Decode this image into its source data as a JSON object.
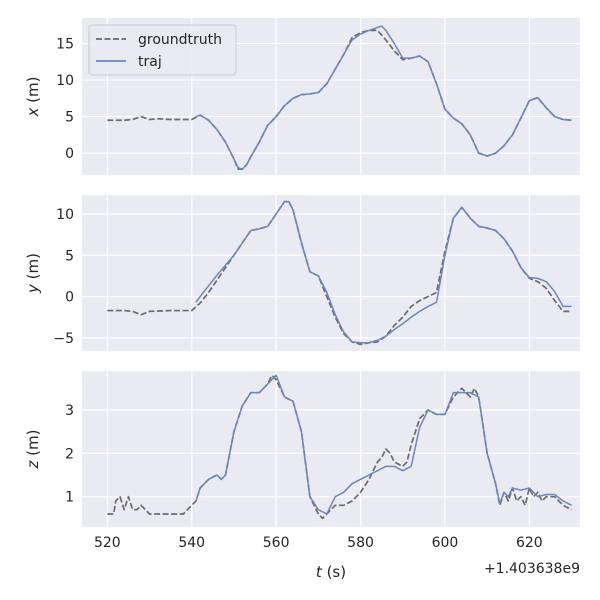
{
  "chart_data": [
    {
      "type": "line",
      "ylabel_var": "x",
      "ylabel_unit": "(m)",
      "xlim": [
        514,
        632
      ],
      "ylim": [
        -3.0,
        18.5
      ],
      "yticks": [
        0,
        5,
        10,
        15
      ],
      "grid": true,
      "legend": "top-left",
      "series": [
        {
          "name": "groundtruth",
          "style": "dashed",
          "color": "#6b6b6b",
          "x": [
            520,
            522,
            524,
            526,
            528,
            530,
            532,
            535,
            538,
            540,
            542,
            544,
            546,
            548,
            550,
            551,
            552,
            553,
            554,
            556,
            558,
            560,
            562,
            564,
            566,
            568,
            570,
            572,
            574,
            576,
            578,
            580,
            582,
            584,
            586,
            588,
            590,
            592,
            594,
            596,
            598,
            600,
            602,
            604,
            606,
            608,
            610,
            612,
            614,
            616,
            618,
            620,
            622,
            624,
            626,
            628,
            630
          ],
          "y": [
            4.5,
            4.5,
            4.5,
            4.6,
            5.0,
            4.6,
            4.7,
            4.6,
            4.6,
            4.6,
            5.2,
            4.5,
            3.2,
            1.5,
            -0.8,
            -2.2,
            -2.2,
            -1.6,
            -0.5,
            1.5,
            3.8,
            5.0,
            6.5,
            7.5,
            8.0,
            8.1,
            8.3,
            9.5,
            11.5,
            13.5,
            15.8,
            16.5,
            16.8,
            16.8,
            15.5,
            14.0,
            12.8,
            13.0,
            13.3,
            12.5,
            9.5,
            6.0,
            4.8,
            4.0,
            2.5,
            0,
            -0.4,
            0,
            1.0,
            2.5,
            4.8,
            7.2,
            7.6,
            6.2,
            5.0,
            4.6,
            4.5
          ]
        },
        {
          "name": "traj",
          "style": "solid",
          "color": "#6b87c1",
          "x": [
            541,
            542,
            544,
            546,
            548,
            550,
            551,
            552,
            553,
            554,
            556,
            558,
            560,
            562,
            564,
            566,
            568,
            570,
            572,
            574,
            576,
            578,
            580,
            582,
            584,
            585,
            586,
            588,
            590,
            592,
            594,
            596,
            598,
            600,
            602,
            604,
            606,
            608,
            610,
            612,
            614,
            616,
            618,
            620,
            622,
            624,
            626,
            628,
            630
          ],
          "y": [
            5.0,
            5.2,
            4.5,
            3.2,
            1.5,
            -0.8,
            -2.0,
            -2.2,
            -1.6,
            -0.5,
            1.5,
            3.8,
            5.0,
            6.5,
            7.5,
            8.0,
            8.1,
            8.3,
            9.5,
            11.5,
            13.5,
            15.5,
            16.3,
            16.8,
            17.2,
            17.4,
            16.8,
            15.0,
            13.0,
            13.0,
            13.3,
            12.5,
            9.5,
            6.0,
            4.8,
            4.0,
            2.5,
            0,
            -0.4,
            0,
            1.0,
            2.5,
            4.8,
            7.2,
            7.6,
            6.2,
            5.0,
            4.6,
            4.5
          ]
        }
      ]
    },
    {
      "type": "line",
      "ylabel_var": "y",
      "ylabel_unit": "(m)",
      "xlim": [
        514,
        632
      ],
      "ylim": [
        -6.6,
        12.3
      ],
      "yticks": [
        -5,
        0,
        5,
        10
      ],
      "grid": true,
      "series": [
        {
          "name": "groundtruth",
          "style": "dashed",
          "color": "#6b6b6b",
          "x": [
            520,
            524,
            526,
            528,
            530,
            535,
            540,
            542,
            544,
            546,
            548,
            550,
            552,
            554,
            556,
            558,
            560,
            562,
            563,
            564,
            566,
            568,
            570,
            572,
            574,
            576,
            578,
            580,
            582,
            584,
            586,
            588,
            590,
            592,
            594,
            596,
            598,
            600,
            602,
            604,
            606,
            608,
            610,
            612,
            614,
            616,
            618,
            620,
            622,
            624,
            626,
            628,
            630
          ],
          "y": [
            -1.7,
            -1.7,
            -1.8,
            -2.2,
            -1.8,
            -1.7,
            -1.7,
            -0.8,
            0.5,
            2.0,
            3.5,
            5.0,
            6.5,
            8.0,
            8.2,
            8.5,
            10.0,
            11.5,
            11.5,
            10.5,
            6.5,
            3.0,
            2.5,
            0,
            -2.5,
            -4.5,
            -5.5,
            -5.8,
            -5.6,
            -5.5,
            -4.8,
            -3.5,
            -2.5,
            -1.2,
            -0.5,
            0,
            0.5,
            5.5,
            9.5,
            10.8,
            9.5,
            8.5,
            8.3,
            8.0,
            7.0,
            5.5,
            3.5,
            2.2,
            1.8,
            1.0,
            -0.5,
            -1.8,
            -1.8
          ]
        },
        {
          "name": "traj",
          "style": "solid",
          "color": "#6b87c1",
          "x": [
            541,
            542,
            544,
            546,
            548,
            550,
            552,
            554,
            556,
            558,
            560,
            562,
            563,
            564,
            566,
            568,
            570,
            572,
            574,
            576,
            578,
            580,
            582,
            584,
            586,
            588,
            590,
            592,
            594,
            596,
            598,
            600,
            602,
            604,
            606,
            608,
            610,
            612,
            614,
            616,
            618,
            620,
            622,
            624,
            626,
            628,
            630
          ],
          "y": [
            -0.7,
            0,
            1.3,
            2.6,
            3.8,
            5.0,
            6.5,
            8.0,
            8.2,
            8.5,
            10.0,
            11.5,
            11.5,
            10.5,
            6.5,
            3.0,
            2.5,
            0.5,
            -2.2,
            -4.3,
            -5.5,
            -5.6,
            -5.6,
            -5.3,
            -4.8,
            -4.0,
            -3.3,
            -2.5,
            -1.8,
            -1.2,
            -0.7,
            5.0,
            9.5,
            10.8,
            9.5,
            8.5,
            8.3,
            8.0,
            7.0,
            5.5,
            3.5,
            2.3,
            2.2,
            1.8,
            0.6,
            -1.2,
            -1.2
          ]
        }
      ]
    },
    {
      "type": "line",
      "ylabel_var": "z",
      "ylabel_unit": "(m)",
      "xlim": [
        514,
        632
      ],
      "xticks": [
        520,
        540,
        560,
        580,
        600,
        620
      ],
      "xlabel_var": "t",
      "xlabel_unit": "(s)",
      "offset_text": "+1.403638e9",
      "ylim": [
        0.3,
        3.9
      ],
      "yticks": [
        1,
        2,
        3
      ],
      "grid": true,
      "series": [
        {
          "name": "groundtruth",
          "style": "dashed",
          "color": "#6b6b6b",
          "x": [
            520,
            521.5,
            522,
            523,
            524,
            525,
            526,
            527,
            528,
            529,
            530,
            532,
            535,
            538,
            540,
            541,
            542,
            544,
            546,
            547,
            548,
            550,
            552,
            554,
            556,
            558,
            559,
            560,
            562,
            564,
            566,
            568,
            570,
            571,
            572,
            574,
            576,
            578,
            579,
            580,
            582,
            584,
            585,
            586,
            587,
            588,
            590,
            591,
            592,
            594,
            596,
            598,
            600,
            602,
            604,
            606,
            607,
            608,
            610,
            612,
            613,
            614,
            615,
            616,
            617,
            618,
            619,
            620,
            621,
            622,
            623,
            624,
            626,
            628,
            630
          ],
          "y": [
            0.6,
            0.6,
            0.9,
            1.0,
            0.7,
            1.0,
            0.7,
            0.7,
            0.8,
            0.7,
            0.6,
            0.6,
            0.6,
            0.6,
            0.8,
            0.9,
            1.2,
            1.4,
            1.5,
            1.4,
            1.5,
            2.5,
            3.1,
            3.4,
            3.4,
            3.6,
            3.8,
            3.7,
            3.3,
            3.2,
            2.5,
            1.0,
            0.6,
            0.5,
            0.6,
            0.8,
            0.8,
            0.9,
            1.0,
            1.1,
            1.4,
            1.8,
            1.9,
            2.1,
            2.0,
            1.8,
            1.7,
            1.8,
            2.2,
            2.8,
            3.0,
            2.9,
            2.9,
            3.3,
            3.5,
            3.3,
            3.5,
            3.3,
            2.0,
            1.3,
            0.8,
            1.1,
            0.9,
            1.2,
            0.9,
            1.0,
            0.8,
            1.2,
            1.0,
            1.1,
            0.9,
            1.0,
            1.0,
            0.8,
            0.7
          ]
        },
        {
          "name": "traj",
          "style": "solid",
          "color": "#6b87c1",
          "x": [
            541,
            542,
            544,
            546,
            547,
            548,
            550,
            552,
            554,
            556,
            558,
            560,
            562,
            564,
            566,
            568,
            570,
            572,
            574,
            576,
            578,
            580,
            582,
            584,
            586,
            588,
            590,
            592,
            594,
            596,
            598,
            600,
            602,
            604,
            606,
            608,
            610,
            612,
            613,
            614,
            615,
            616,
            618,
            620,
            622,
            624,
            626,
            628,
            630
          ],
          "y": [
            0.9,
            1.2,
            1.4,
            1.5,
            1.4,
            1.5,
            2.5,
            3.1,
            3.4,
            3.4,
            3.6,
            3.8,
            3.3,
            3.2,
            2.5,
            1.0,
            0.7,
            0.6,
            1.0,
            1.1,
            1.3,
            1.4,
            1.5,
            1.6,
            1.7,
            1.7,
            1.6,
            1.7,
            2.6,
            3.0,
            2.9,
            2.9,
            3.4,
            3.4,
            3.4,
            3.3,
            2.0,
            1.3,
            0.85,
            1.1,
            1.0,
            1.2,
            1.15,
            1.2,
            1.0,
            1.05,
            1.05,
            0.9,
            0.8
          ]
        }
      ]
    }
  ]
}
